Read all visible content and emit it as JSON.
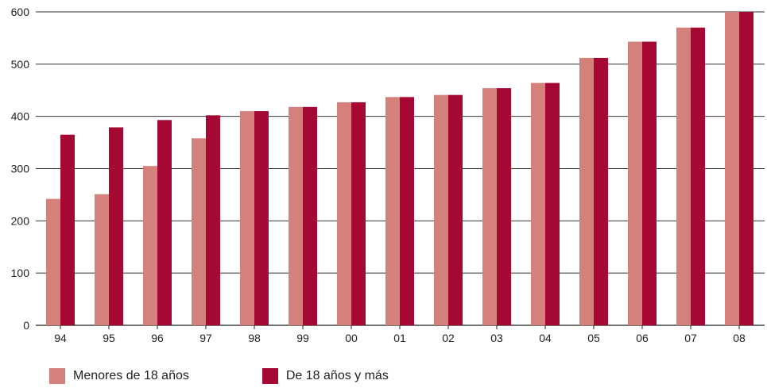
{
  "chart_data": {
    "type": "bar",
    "categories": [
      "94",
      "95",
      "96",
      "97",
      "98",
      "99",
      "00",
      "01",
      "02",
      "03",
      "04",
      "05",
      "06",
      "07",
      "08"
    ],
    "series": [
      {
        "name": "Menores de 18 años",
        "color": "#d4817c",
        "values": [
          242,
          251,
          305,
          358,
          410,
          418,
          427,
          437,
          441,
          454,
          464,
          512,
          543,
          570,
          600
        ]
      },
      {
        "name": "De 18 años y más",
        "color": "#a60834",
        "values": [
          365,
          379,
          393,
          402,
          410,
          418,
          427,
          437,
          441,
          454,
          464,
          512,
          543,
          570,
          600
        ]
      }
    ],
    "ylim": [
      0,
      600
    ],
    "yticks": [
      "0",
      "100",
      "200",
      "300",
      "400",
      "500",
      "600"
    ],
    "grid": true,
    "legend": "bottom-left"
  }
}
